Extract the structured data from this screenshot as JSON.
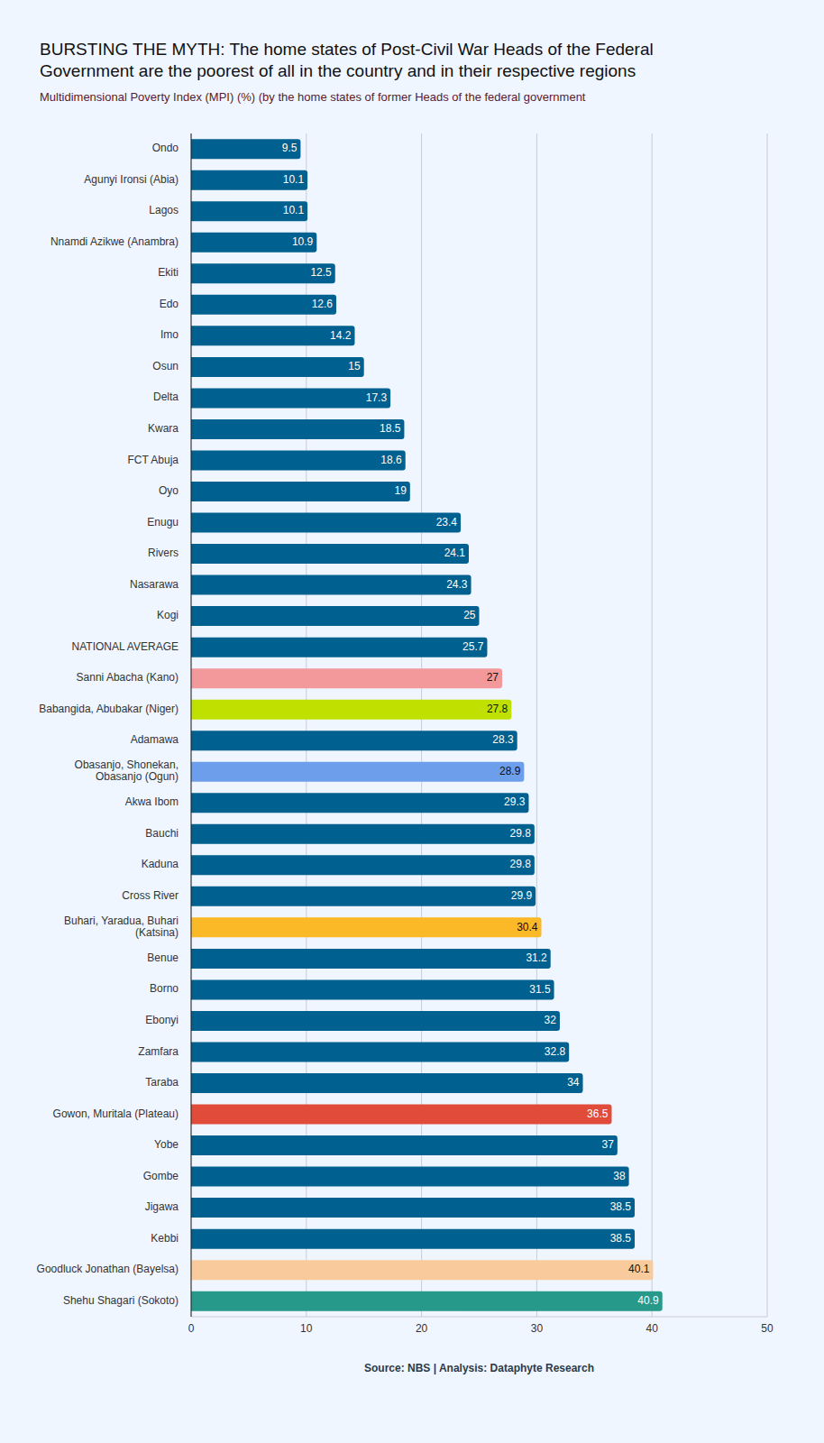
{
  "chart_data": {
    "type": "bar",
    "orientation": "horizontal",
    "title": "BURSTING THE MYTH: The home states of Post-Civil War Heads of the Federal Government are the poorest of all in the country and in their respective regions",
    "subtitle": "Multidimensional Poverty Index (MPI) (%) (by the home states of former Heads of the federal government",
    "source": "Source: NBS | Analysis: Dataphyte Research",
    "categories": [
      "Ondo",
      "Agunyi Ironsi (Abia)",
      "Lagos",
      "Nnamdi Azikwe (Anambra)",
      "Ekiti",
      "Edo",
      "Imo",
      "Osun",
      "Delta",
      "Kwara",
      "FCT Abuja",
      "Oyo",
      "Enugu",
      "Rivers",
      "Nasarawa",
      "Kogi",
      "NATIONAL AVERAGE",
      "Sanni Abacha (Kano)",
      "Babangida, Abubakar (Niger)",
      "Adamawa",
      "Obasanjo, Shonekan, Obasanjo (Ogun)",
      "Akwa Ibom",
      "Bauchi",
      "Kaduna",
      "Cross River",
      "Buhari, Yaradua, Buhari (Katsina)",
      "Benue",
      "Borno",
      "Ebonyi",
      "Zamfara",
      "Taraba",
      "Gowon, Muritala (Plateau)",
      "Yobe",
      "Gombe",
      "Jigawa",
      "Kebbi",
      "Goodluck Jonathan (Bayelsa)",
      "Shehu Shagari (Sokoto)"
    ],
    "values": [
      9.5,
      10.1,
      10.1,
      10.9,
      12.5,
      12.6,
      14.2,
      15,
      17.3,
      18.5,
      18.6,
      19,
      23.4,
      24.1,
      24.3,
      25,
      25.7,
      27,
      27.8,
      28.3,
      28.9,
      29.3,
      29.8,
      29.8,
      29.9,
      30.4,
      31.2,
      31.5,
      32,
      32.8,
      34,
      36.5,
      37,
      38,
      38.5,
      38.5,
      40.1,
      40.9
    ],
    "colors": [
      "#00608f",
      "#00608f",
      "#00608f",
      "#00608f",
      "#00608f",
      "#00608f",
      "#00608f",
      "#00608f",
      "#00608f",
      "#00608f",
      "#00608f",
      "#00608f",
      "#00608f",
      "#00608f",
      "#00608f",
      "#00608f",
      "#00608f",
      "#f4999b",
      "#c0e000",
      "#00608f",
      "#6d9eeb",
      "#00608f",
      "#00608f",
      "#00608f",
      "#00608f",
      "#fbb827",
      "#00608f",
      "#00608f",
      "#00608f",
      "#00608f",
      "#00608f",
      "#e04b3a",
      "#00608f",
      "#00608f",
      "#00608f",
      "#00608f",
      "#f9cb9c",
      "#26998a"
    ],
    "xlim": [
      0,
      50
    ],
    "xticks": [
      0,
      10,
      20,
      30,
      40,
      50
    ],
    "grid": true,
    "data_labels": true
  }
}
